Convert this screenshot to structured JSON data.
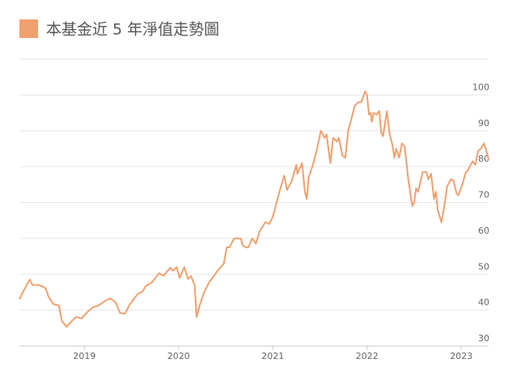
{
  "chart_data": {
    "type": "line",
    "series": [
      {
        "name": "本基金近 5 年淨值走勢圖",
        "color": "#f0a06e",
        "x": [
          2018.31,
          2018.37,
          2018.42,
          2018.45,
          2018.51,
          2018.55,
          2018.59,
          2018.62,
          2018.67,
          2018.73,
          2018.76,
          2018.81,
          2018.86,
          2018.91,
          2018.97,
          2019.02,
          2019.09,
          2019.15,
          2019.22,
          2019.27,
          2019.33,
          2019.38,
          2019.43,
          2019.48,
          2019.53,
          2019.57,
          2019.62,
          2019.65,
          2019.72,
          2019.79,
          2019.84,
          2019.91,
          2019.94,
          2019.98,
          2020.01,
          2020.06,
          2020.1,
          2020.13,
          2020.17,
          2020.19,
          2020.23,
          2020.27,
          2020.32,
          2020.37,
          2020.42,
          2020.48,
          2020.51,
          2020.54,
          2020.59,
          2020.66,
          2020.68,
          2020.72,
          2020.74,
          2020.78,
          2020.82,
          2020.86,
          2020.92,
          2020.96,
          2021.0,
          2021.04,
          2021.07,
          2021.12,
          2021.15,
          2021.2,
          2021.25,
          2021.26,
          2021.31,
          2021.34,
          2021.36,
          2021.38,
          2021.42,
          2021.47,
          2021.51,
          2021.55,
          2021.57,
          2021.61,
          2021.64,
          2021.68,
          2021.7,
          2021.74,
          2021.77,
          2021.8,
          2021.84,
          2021.87,
          2021.91,
          2021.94,
          2021.98,
          2022.0,
          2022.02,
          2022.04,
          2022.05,
          2022.07,
          2022.1,
          2022.13,
          2022.15,
          2022.17,
          2022.21,
          2022.24,
          2022.27,
          2022.29,
          2022.31,
          2022.34,
          2022.37,
          2022.4,
          2022.44,
          2022.48,
          2022.5,
          2022.52,
          2022.54,
          2022.56,
          2022.59,
          2022.63,
          2022.65,
          2022.68,
          2022.71,
          2022.73,
          2022.75,
          2022.79,
          2022.82,
          2022.85,
          2022.89,
          2022.92,
          2022.95,
          2022.97,
          2023.01,
          2023.05,
          2023.07,
          2023.12,
          2023.15,
          2023.18,
          2023.21,
          2023.24,
          2023.26,
          2023.29
        ],
        "values": [
          43,
          46.2,
          48.5,
          47,
          47,
          46.7,
          46,
          43.7,
          41.7,
          41.3,
          37,
          35.4,
          36.8,
          38.1,
          37.7,
          39.2,
          40.8,
          41.3,
          42.6,
          43.3,
          42.2,
          39.2,
          39,
          41.5,
          43.3,
          44.6,
          45.3,
          46.7,
          47.8,
          50.3,
          49.6,
          51.8,
          51,
          52,
          49,
          52,
          48.7,
          49.5,
          47,
          38.1,
          41.9,
          44.9,
          47.6,
          49.4,
          51.2,
          53,
          57.5,
          57.5,
          60,
          60,
          58,
          57.5,
          57.5,
          60,
          58.5,
          62,
          64.5,
          64,
          66,
          70,
          73,
          77.5,
          73.5,
          76,
          80.5,
          78,
          81,
          73,
          71,
          77,
          80,
          85,
          90,
          88,
          89,
          81,
          88,
          87,
          88,
          83,
          82.5,
          90,
          94,
          97,
          98,
          98,
          101,
          100,
          94.5,
          95,
          92.5,
          95,
          94.5,
          95.5,
          89.5,
          88.5,
          95.5,
          89,
          86,
          82.5,
          85,
          82.5,
          86.5,
          85.5,
          76,
          69,
          70,
          74,
          73,
          75,
          78.5,
          78.5,
          76.5,
          78,
          71,
          73,
          68,
          64.5,
          69,
          74.5,
          76.5,
          76,
          72.5,
          72,
          75,
          78.5,
          79,
          81.5,
          80.5,
          84.5,
          85,
          86.5,
          85,
          82
        ]
      }
    ],
    "xlim": [
      2018.31,
      2023.29
    ],
    "xticks": [
      2019,
      2020,
      2021,
      2022,
      2023
    ],
    "ylim": [
      30,
      110
    ],
    "yticks": [
      30,
      40,
      50,
      60,
      70,
      80,
      90,
      100
    ],
    "grid": true
  }
}
